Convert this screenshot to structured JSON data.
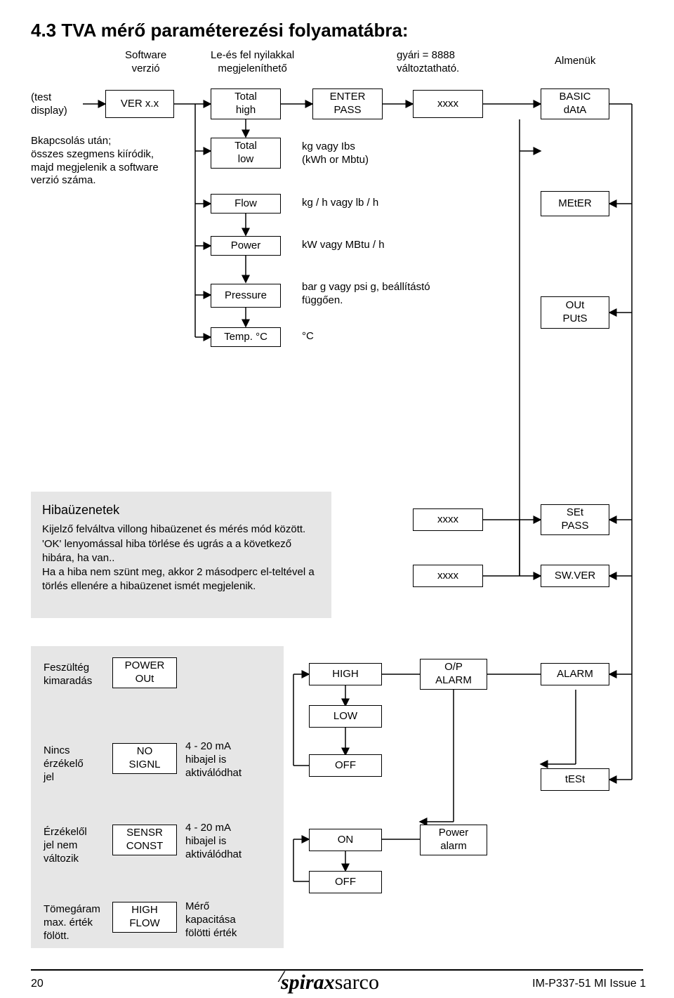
{
  "title": "4.3 TVA mérő paraméterezési folyamatábra:",
  "title_fontsize": 26,
  "topLabels": {
    "software": "Software\nverzió",
    "lefel": "Le-és fel nyilakkal\nmegjeleníthető",
    "gyari": "gyári = 8888\nváltoztatható.",
    "almenuk": "Almenük"
  },
  "left": {
    "test": "(test\ndisplay)",
    "bkapcs": "Bkapcsolás után;\nösszes szegmens kiíródik,\nmajd megjelenik a software\nverzió száma."
  },
  "nodes": {
    "ver": "VER x.x",
    "totalHigh": "Total\nhigh",
    "totalLow": "Total\nlow",
    "flow": "Flow",
    "power": "Power",
    "pressure": "Pressure",
    "tempC": "Temp. °C",
    "enter": "ENTER\nPASS",
    "xxxx": "xxxx",
    "basic": "BASIC\ndAtA",
    "meter": "MEtER",
    "outputs": "OUt\nPUtS",
    "setpass": "SEt\nPASS",
    "swver": "SW.VER",
    "alarm": "ALARM",
    "test": "tESt",
    "powerOut": "POWER\nOUt",
    "noSignl": "NO\nSIGNL",
    "sensrConst": "SENSR\nCONST",
    "highFlow": "HIGH\nFLOW",
    "high": "HIGH",
    "low": "LOW",
    "off": "OFF",
    "on": "ON",
    "opAlarm": "O/P\nALARM",
    "powerAlarm": "Power\nalarm"
  },
  "sideDesc": {
    "totalLow": "kg vagy Ibs\n(kWh or Mbtu)",
    "flow": "kg / h vagy lb / h",
    "power": "kW vagy MBtu / h",
    "pressure": "bar g vagy psi g, beállítástó\nfüggően.",
    "tempC": "°C"
  },
  "hibabox": {
    "title": "Hibaüzenetek",
    "body": "Kijelző felváltva villong hibaüzenet és mérés mód között. 'OK' lenyomással hiba törlése és ugrás a a következő hibára, ha van..\nHa a hiba nem szünt meg, akkor 2 másodperc el-teltével a törlés ellenére a hibaüzenet ismét megjelenik."
  },
  "errRows": {
    "feszult": "Feszültég\nkimaradás",
    "nincs": "Nincs\nérzékelő\njel",
    "erzekelo": "Érzékelől\njel nem\nváltozik",
    "tomeg": "Tömegáram\nmax. érték\nfölött.",
    "nosignlDesc": "4 - 20 mA\nhibajel is\naktiválódhat",
    "sensrDesc": "4 - 20 mA\nhibajel is\naktiválódhat",
    "highflowDesc": "Mérő\nkapacitása\nfölötti érték"
  },
  "footer": {
    "pageNum": "20",
    "docId": "IM-P337-51    MI Issue 1"
  },
  "style": {
    "lineColor": "#000000",
    "lineWidth": 1.5,
    "infoBg": "#e6e6e6",
    "background": "#ffffff",
    "textColor": "#000000",
    "node_fontsize": 15,
    "label_fontsize": 15
  }
}
